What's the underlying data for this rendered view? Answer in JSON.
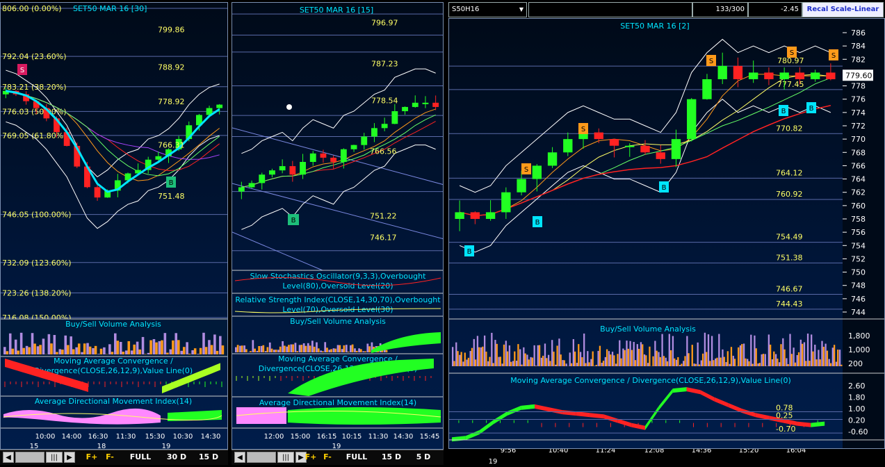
{
  "colors": {
    "bg": "#00163a",
    "grid": "#5a6aa8",
    "ink": "#ffffff",
    "yellow": "#ffff66",
    "cyan": "#00e5ff",
    "up": "#22ff22",
    "down": "#ff2222",
    "orange": "#ff9a1a",
    "violet": "#b08ce0",
    "pink": "#ff88ff"
  },
  "pane1": {
    "title": "SET50 MAR 16  [30]",
    "fib_levels": [
      {
        "label": "806.00 (0.00%)",
        "value": 806.0
      },
      {
        "label": "792.04 (23.60%)",
        "value": 792.04
      },
      {
        "label": "783.21 (38.20%)",
        "value": 783.21
      },
      {
        "label": "776.03 (50.00%)",
        "value": 776.03
      },
      {
        "label": "769.05 (61.80%)",
        "value": 769.05
      },
      {
        "label": "746.05 (100.00%)",
        "value": 746.05
      },
      {
        "label": "732.09 (123.60%)",
        "value": 732.09
      },
      {
        "label": "723.26 (138.20%)",
        "value": 723.26
      },
      {
        "label": "716.08 (150.00%)",
        "value": 716.08
      }
    ],
    "price_labels": [
      "799.86",
      "788.92",
      "778.92",
      "766.31",
      "751.48"
    ],
    "signals": [
      "S",
      "B"
    ],
    "vol_title": "Buy/Sell Volume Analysis",
    "macd_title": "Moving Average Convergence / Divergence(CLOSE,26,12,9),Value Line(0)",
    "adx_title": "Average Directional Movement Index(14)",
    "time_labels": [
      "10:00",
      "14:00",
      "16:30",
      "11:30",
      "15:30",
      "10:30",
      "14:30"
    ],
    "day_labels": [
      "15",
      "18",
      "19"
    ],
    "toolbar": {
      "f_plus": "F+",
      "f_minus": "F-",
      "full": "FULL",
      "r1": "30 D",
      "r2": "15 D"
    }
  },
  "pane2": {
    "title": "SET50 MAR 16  [15]",
    "price_labels": [
      "796.97",
      "787.23",
      "778.54",
      "766.56",
      "751.22",
      "746.17"
    ],
    "signals": [
      "B"
    ],
    "stoch_title": "Slow Stochastics Oscillator(9,3,3),Overbought Level(80),Oversold Level(20)",
    "rsi_title": "Relative Strength Index(CLOSE,14,30,70),Overbought Level(70),Oversold Level(30)",
    "vol_title": "Buy/Sell Volume Analysis",
    "macd_title": "Moving Average Convergence / Divergence(CLOSE,26,12,9),Value Line(0)",
    "adx_title": "Average Directional Movement Index(14)",
    "time_labels": [
      "12:00",
      "15:00",
      "16:15",
      "10:15",
      "11:30",
      "14:30",
      "15:45"
    ],
    "day_labels": [
      "19"
    ],
    "toolbar": {
      "f_plus": "F+",
      "f_minus": "F-",
      "full": "FULL",
      "r1": "15 D",
      "r2": "5 D"
    }
  },
  "pane3": {
    "symbol": "S50H16",
    "count": "133/300",
    "change": "-2.45",
    "recal": "Recal Scale-Linear",
    "title": "SET50 MAR 16  [2]",
    "last_price": "779.60",
    "axis_ticks": [
      "786",
      "784",
      "782",
      "780",
      "778",
      "776",
      "774",
      "772",
      "770",
      "768",
      "766",
      "764",
      "762",
      "760",
      "758",
      "756",
      "754",
      "752",
      "750",
      "748",
      "746",
      "744"
    ],
    "price_labels": [
      "780.97",
      "777.45",
      "770.82",
      "764.12",
      "760.92",
      "754.49",
      "751.38",
      "746.67",
      "744.43"
    ],
    "signals_s": [
      "S",
      "S",
      "S",
      "S",
      "S"
    ],
    "signals_b": [
      "B",
      "B",
      "B",
      "B",
      "B"
    ],
    "vol_title": "Buy/Sell Volume Analysis",
    "vol_ticks": [
      "1,800",
      "1,000",
      "200"
    ],
    "macd_title": "Moving Average Convergence / Divergence(CLOSE,26,12,9),Value Line(0)",
    "macd_ticks": [
      "2.60",
      "1.80",
      "1.00",
      "0.20",
      "-0.60"
    ],
    "macd_labels": [
      "0.78",
      "0.25",
      "-0.70"
    ],
    "time_labels": [
      "9:56",
      "10:40",
      "11:24",
      "12:08",
      "14:36",
      "15:20",
      "16:04"
    ],
    "day_labels": [
      "19"
    ]
  },
  "chart_data": [
    {
      "type": "line",
      "title": "SET50 MAR 16  [30]",
      "series": [
        {
          "values": [
            782,
            781,
            779,
            777,
            774,
            770,
            766,
            760,
            754,
            751,
            753,
            756,
            758,
            759,
            762,
            763,
            765,
            768,
            772,
            775,
            777,
            778
          ]
        }
      ],
      "ylim": [
        716.08,
        806.0
      ]
    },
    {
      "type": "line",
      "title": "SET50 MAR 16  [15]",
      "series": [
        {
          "values": [
            758,
            759,
            761,
            762,
            763,
            761,
            764,
            766,
            765,
            764,
            767,
            768,
            770,
            772,
            773,
            776,
            777,
            778,
            778,
            777
          ]
        }
      ],
      "ylim": [
        740,
        800
      ]
    },
    {
      "type": "line",
      "title": "SET50 MAR 16  [2]",
      "series": [
        {
          "values": [
            759,
            758,
            759,
            762,
            764,
            766,
            768,
            770,
            771,
            770,
            769,
            769,
            768,
            767,
            770,
            776,
            779,
            781,
            779,
            780,
            779,
            780,
            779,
            780,
            779
          ]
        }
      ],
      "ylim": [
        744,
        786
      ]
    }
  ]
}
